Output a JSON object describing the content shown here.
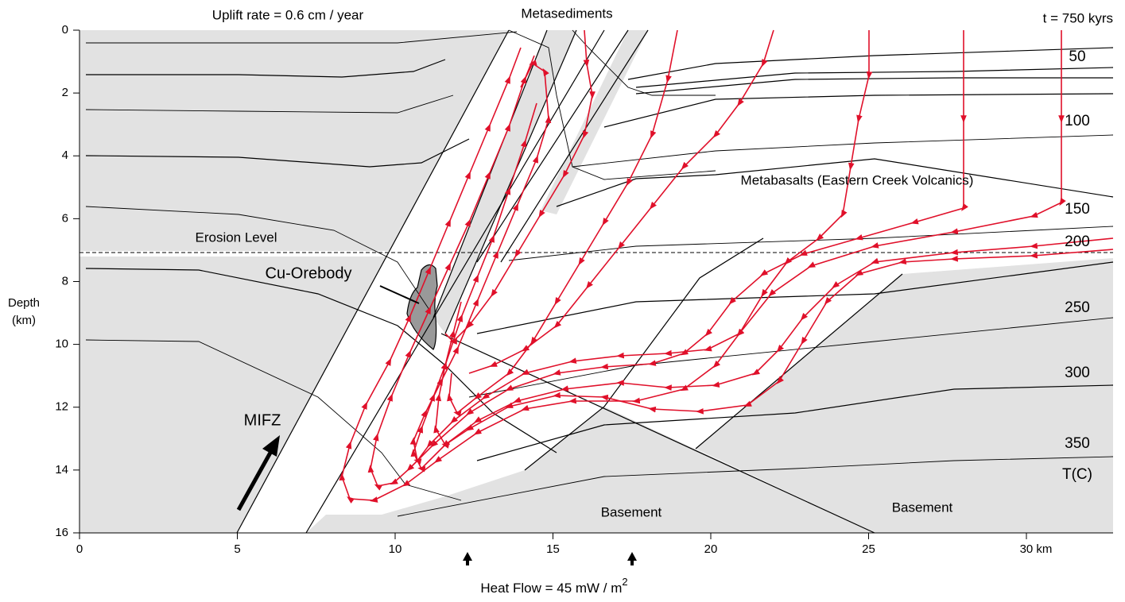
{
  "header": {
    "left": "Uplift rate = 0.6 cm / year",
    "center": "Metasediments",
    "right": "t = 750 kyrs"
  },
  "y_axis": {
    "title": [
      "Depth",
      "(km)"
    ],
    "ticks": [
      0,
      2,
      4,
      6,
      8,
      10,
      12,
      14,
      16
    ]
  },
  "x_axis": {
    "title": "Heat Flow = 45 mW / m",
    "title_superscript": "2",
    "ticks": [
      0,
      5,
      10,
      15,
      20,
      25,
      {
        "value": 30,
        "label": "30 km"
      }
    ]
  },
  "isotherm_labels": [
    "50",
    "100",
    "150",
    "200",
    "250",
    "300",
    "350",
    "T(C)"
  ],
  "labels": {
    "metabasalts": "Metabasalts (Eastern Creek Volcanics)",
    "erosion_level": "Erosion Level",
    "orebody": "Cu-Orebody",
    "fault": "MIFZ",
    "basement": [
      "Basement",
      "Basement"
    ]
  }
}
